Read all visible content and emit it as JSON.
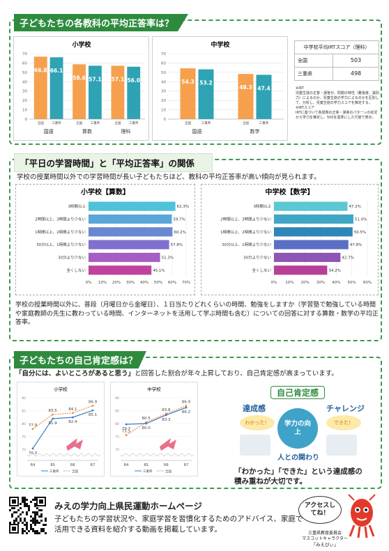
{
  "sec1": {
    "title": "子どもたちの各教科の平均正答率は？",
    "elementary": {
      "title": "小学校",
      "yticks": [
        "0",
        "10",
        "20",
        "30",
        "40",
        "50",
        "60",
        "70"
      ],
      "groups": [
        {
          "label": "国語",
          "national": 66.8,
          "mie": 66.1
        },
        {
          "label": "算数",
          "national": 58.6,
          "mie": 57.1
        },
        {
          "label": "理科",
          "national": 57.1,
          "mie": 56.0
        }
      ]
    },
    "middle": {
      "title": "中学校",
      "yticks": [
        "0",
        "10",
        "20",
        "30",
        "40",
        "50",
        "60",
        "70"
      ],
      "groups": [
        {
          "label": "国語",
          "national": 54.3,
          "mie": 53.2
        },
        {
          "label": "数学",
          "national": 48.3,
          "mie": 47.4
        }
      ]
    },
    "legend_national": "全国",
    "legend_mie": "三重県",
    "irt": {
      "header": "中学校平均IRTスコア（理科）",
      "rows": [
        {
          "label": "全国",
          "value": "503"
        },
        {
          "label": "三重県",
          "value": "498"
        }
      ]
    },
    "irt_note": "※IRT\n児童生徒の正答・誤答が、問題の特性（難易度、識別力）によるのか、児童生徒の学力によるのかを区別して、分析し、児童生徒の学力スコアを推定する。\n※IRTスコア\nIRTに基づいて各問題の正答・誤答のパターンの状況から学力を推定し、500を基準にした尺度で表示。"
  },
  "sec2": {
    "title": "「平日の学習時間」と「平均正答率」の関係",
    "lead": "学校の授業時間以外での学習時間が長い子どもたちほど、教科の平均正答率が高い傾向が見られます。",
    "xticks": [
      "0%",
      "10%",
      "20%",
      "30%",
      "40%",
      "50%",
      "60%",
      "70%"
    ],
    "xticks_mid": [
      "0%",
      "10%",
      "20%",
      "30%",
      "40%",
      "50%",
      "60%"
    ],
    "elementary": {
      "title": "小学校【算数】",
      "rows": [
        {
          "label": "3時間以上",
          "value": 62.3,
          "text": "62.3%",
          "color": "#4fc3d9"
        },
        {
          "label": "2時間以上、3時間より少ない",
          "value": 59.7,
          "text": "59.7%",
          "color": "#5aa6d8"
        },
        {
          "label": "1時間以上、2時間より少ない",
          "value": 60.2,
          "text": "60.2%",
          "color": "#6a87d2"
        },
        {
          "label": "30分以上、1時間より少ない",
          "value": 57.8,
          "text": "57.8%",
          "color": "#7f6fcf"
        },
        {
          "label": "30分より少ない",
          "value": 51.3,
          "text": "51.3%",
          "color": "#a45ec4"
        },
        {
          "label": "全くしない",
          "value": 45.1,
          "text": "45.1%",
          "color": "#c0429e"
        }
      ]
    },
    "middle": {
      "title": "中学校【数学】",
      "rows": [
        {
          "label": "3時間以上",
          "value": 47.2,
          "text": "47.2%",
          "color": "#5cc8d3"
        },
        {
          "label": "2時間以上、3時間より少ない",
          "value": 51.0,
          "text": "51.0%",
          "color": "#3fa6c4"
        },
        {
          "label": "1時間以上、2時間より少ない",
          "value": 50.5,
          "text": "50.5%",
          "color": "#2e86b6"
        },
        {
          "label": "30分以上、1時間より少ない",
          "value": 47.8,
          "text": "47.8%",
          "color": "#5b6fc4"
        },
        {
          "label": "30分より少ない",
          "value": 42.7,
          "text": "42.7%",
          "color": "#8d55b5"
        },
        {
          "label": "全くしない",
          "value": 34.2,
          "text": "34.2%",
          "color": "#b83f97"
        }
      ]
    },
    "note": "学校の授業時間以外に、普段（月曜日から金曜日）、１日当たりどれくらいの時間、勉強をしますか（学習塾で勉強している時間や家庭教師の先生に教わっている時間、インターネットを活用して学ぶ時間も含む）についての回答に対する算数・数学の平均正答率。"
  },
  "sec3": {
    "title": "子どもたちの自己肯定感は？",
    "lead_quote": "「自分には、よいところがあると思う」",
    "lead_rest": "と回答した割合が年々上昇しており、自己肯定感が高まっています。",
    "elementary": {
      "title": "小学校",
      "yticks": [
        "90",
        "85",
        "80",
        "75",
        "70"
      ],
      "x": [
        "R4",
        "R5",
        "R6",
        "R7"
      ],
      "mie": [
        70.3,
        81.9,
        82.4,
        85.1
      ],
      "national": [
        77.9,
        83.5,
        84.1,
        86.9
      ],
      "mie_labels": [
        "70.3",
        "81.9",
        "82.4",
        "85.1"
      ],
      "national_labels": [
        "77.9",
        "83.5",
        "84.1",
        "86.9"
      ]
    },
    "middle": {
      "title": "中学校",
      "yticks": [
        "90",
        "85",
        "80",
        "75",
        "70"
      ],
      "x": [
        "R4",
        "R5",
        "R6",
        "R7"
      ],
      "mie": [
        79.7,
        80.0,
        83.3,
        86.2
      ],
      "national": [
        75.5,
        80.5,
        83.8,
        86.9
      ],
      "mie_labels": [
        "79.7",
        "80.0",
        "83.3",
        "86.2"
      ],
      "national_labels": [
        "75.5",
        "80.5",
        "83.8",
        "86.9"
      ]
    },
    "legend_mie": "三重県",
    "legend_national": "全国",
    "diagram": {
      "top": "自己肯定感",
      "left": "達成感",
      "right": "チャレンジ",
      "center": "学力の向上",
      "bottom": "人との関わり",
      "bubble_left": "わかった！",
      "bubble_right": "できた！"
    },
    "caption": "「わかった」「できた」という達成感の積み重ねが大切です。"
  },
  "footer": {
    "title": "みえの学力向上県民運動ホームページ",
    "text": "子どもたちの学習状況や、家庭学習を習慣化するためのアドバイス、家庭で活用できる資料を紹介する動画を掲載しています。",
    "bubble": "アクセスしてね！",
    "mascot_org": "三重県教育委員会",
    "mascot_sub": "マスコットキャラクター",
    "mascot_name": "「みえぴぃ」"
  },
  "colors": {
    "green": "#2e8b3e",
    "orange": "#f39a3a",
    "teal": "#3aa6b3",
    "national_bar": "#f6a04d",
    "mie_bar": "#2fa3b4"
  }
}
